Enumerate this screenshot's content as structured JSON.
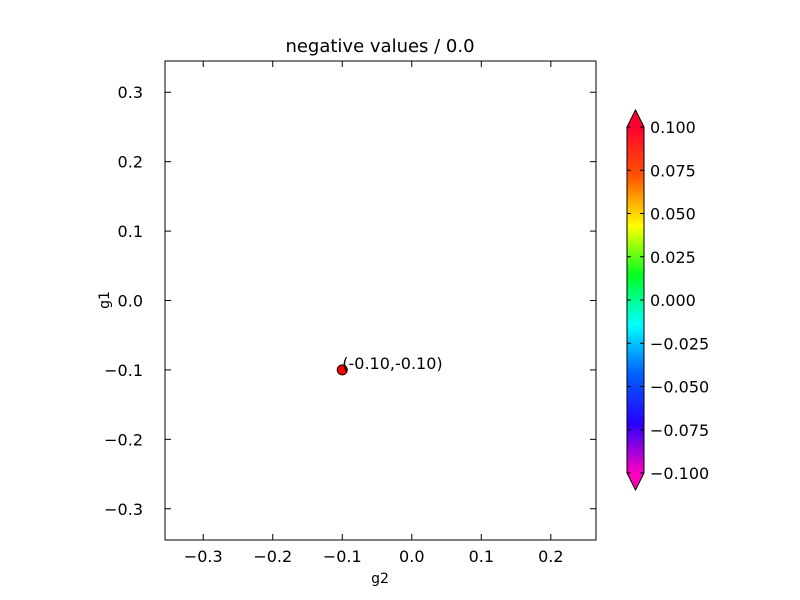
{
  "chart_data": {
    "type": "scatter",
    "title": "negative values / 0.0",
    "xlabel": "g2",
    "ylabel": "g1",
    "xlim": [
      -0.355,
      0.265
    ],
    "ylim": [
      -0.345,
      0.345
    ],
    "xticks": [
      -0.3,
      -0.2,
      -0.1,
      0.0,
      0.1,
      0.2
    ],
    "xtick_labels": [
      "−0.3",
      "−0.2",
      "−0.1",
      "0.0",
      "0.1",
      "0.2"
    ],
    "yticks": [
      0.3,
      0.2,
      0.1,
      0.0,
      -0.1,
      -0.2,
      -0.3
    ],
    "ytick_labels": [
      "0.3",
      "0.2",
      "0.1",
      "0.0",
      "−0.1",
      "−0.2",
      "−0.3"
    ],
    "grid": false,
    "points": [
      {
        "x": -0.1,
        "y": -0.1,
        "value": 0.1,
        "color": "#ff0000",
        "label": "(-0.10,-0.10)"
      }
    ],
    "colorbar": {
      "colormap": "gist_rainbow_r",
      "min": -0.1,
      "max": 0.1,
      "extend": "both",
      "ticks": [
        0.1,
        0.075,
        0.05,
        0.025,
        0.0,
        -0.025,
        -0.05,
        -0.075,
        -0.1
      ],
      "tick_labels": [
        "0.100",
        "0.075",
        "0.050",
        "0.025",
        "0.000",
        "−0.025",
        "−0.050",
        "−0.075",
        "−0.100"
      ],
      "colors_top_to_bottom": [
        "#ff0030",
        "#ff5500",
        "#ffff00",
        "#00ff20",
        "#00ffff",
        "#0060ff",
        "#2800ff",
        "#ff00bf"
      ]
    }
  }
}
